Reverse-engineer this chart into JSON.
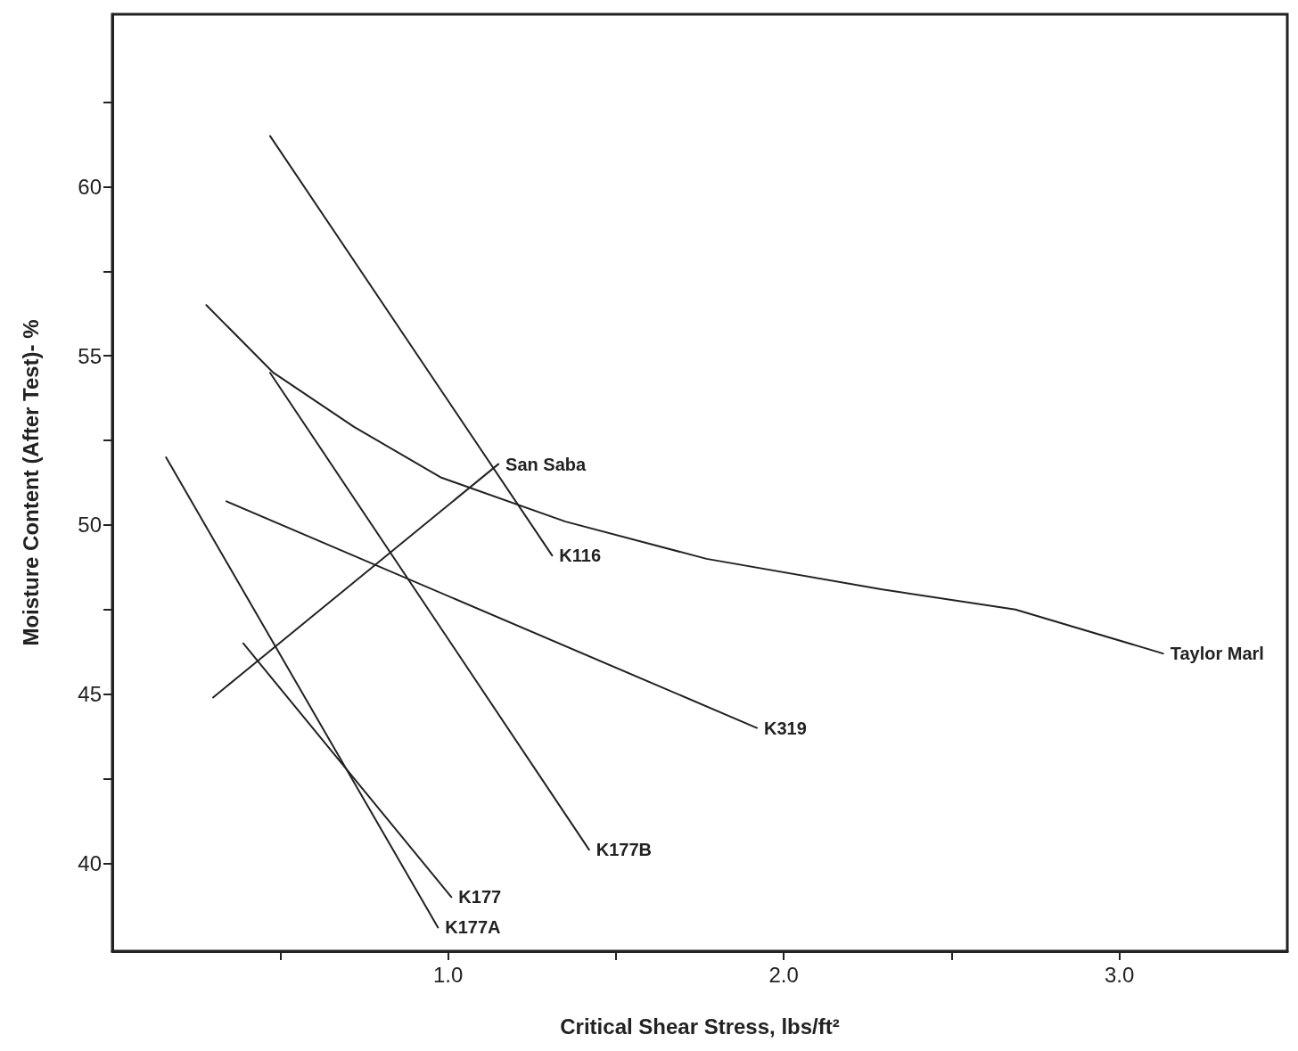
{
  "chart_data": {
    "type": "line",
    "xlabel": "Critical Shear Stress, lbs/ft²",
    "ylabel": "Moisture Content (After Test)- %",
    "xlim": [
      0,
      3.5
    ],
    "ylim": [
      37.4,
      65.1
    ],
    "xticks": [
      {
        "value": 0.5,
        "label": null
      },
      {
        "value": 1.0,
        "label": "1.0"
      },
      {
        "value": 1.5,
        "label": null
      },
      {
        "value": 2.0,
        "label": "2.0"
      },
      {
        "value": 2.5,
        "label": null
      },
      {
        "value": 3.0,
        "label": "3.0"
      }
    ],
    "yticks": [
      40,
      {
        "value": 42.5,
        "label": null
      },
      45,
      {
        "value": 47.5,
        "label": null
      },
      50,
      {
        "value": 52.5,
        "label": null
      },
      55,
      {
        "value": 57.5,
        "label": null
      },
      60,
      {
        "value": 62.5,
        "label": null
      }
    ],
    "grid": false,
    "legend": false,
    "marker": "none",
    "line_style": "solid",
    "series": [
      {
        "name": "K116",
        "color": "#222222",
        "x": [
          0.47,
          1.31
        ],
        "values": [
          61.5,
          49.1
        ]
      },
      {
        "name": "Taylor Marl",
        "color": "#222222",
        "x": [
          0.28,
          0.48,
          0.72,
          0.98,
          1.35,
          1.77,
          2.29,
          2.69,
          3.13
        ],
        "values": [
          56.5,
          54.5,
          52.9,
          51.4,
          50.1,
          49.0,
          48.1,
          47.5,
          46.2
        ]
      },
      {
        "name": "San Saba",
        "color": "#222222",
        "x": [
          0.3,
          1.15
        ],
        "values": [
          44.9,
          51.8
        ]
      },
      {
        "name": "K319",
        "color": "#222222",
        "x": [
          0.34,
          1.92
        ],
        "values": [
          50.7,
          44.0
        ]
      },
      {
        "name": "K177B",
        "color": "#222222",
        "x": [
          0.47,
          1.42
        ],
        "values": [
          54.5,
          40.4
        ]
      },
      {
        "name": "K177A",
        "color": "#222222",
        "x": [
          0.16,
          0.97
        ],
        "values": [
          52.0,
          38.1
        ]
      },
      {
        "name": "K177",
        "color": "#222222",
        "x": [
          0.39,
          1.01
        ],
        "values": [
          46.5,
          39.0
        ]
      }
    ]
  }
}
